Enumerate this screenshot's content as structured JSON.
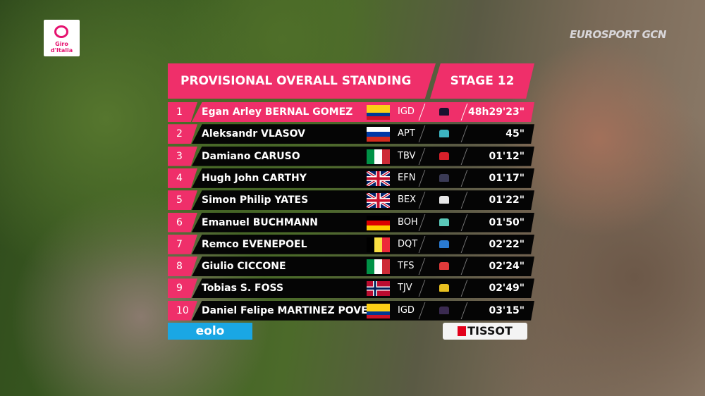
{
  "broadcast": {
    "giro_logo": "Giro d'Italia",
    "network_logo": "EUROSPORT GCN"
  },
  "header": {
    "title": "PROVISIONAL OVERALL STANDING",
    "stage": "STAGE 12"
  },
  "colors": {
    "accent": "#ef2f6a",
    "row": "#050505"
  },
  "standings": [
    {
      "rank": "1",
      "name": "Egan Arley BERNAL GOMEZ",
      "flag": "colombia",
      "team": "IGD",
      "jersey": "#1a1230",
      "time": "48h29'23\""
    },
    {
      "rank": "2",
      "name": "Aleksandr VLASOV",
      "flag": "russia",
      "team": "APT",
      "jersey": "#3cb4c0",
      "time": "45\""
    },
    {
      "rank": "3",
      "name": "Damiano CARUSO",
      "flag": "italy",
      "team": "TBV",
      "jersey": "#d8202a",
      "time": "01'12\""
    },
    {
      "rank": "4",
      "name": "Hugh John CARTHY",
      "flag": "uk",
      "team": "EFN",
      "jersey": "#3a3a55",
      "time": "01'17\""
    },
    {
      "rank": "5",
      "name": "Simon Philip YATES",
      "flag": "uk",
      "team": "BEX",
      "jersey": "#e8e8e8",
      "time": "01'22\""
    },
    {
      "rank": "6",
      "name": "Emanuel BUCHMANN",
      "flag": "germany",
      "team": "BOH",
      "jersey": "#5ac8b8",
      "time": "01'50\""
    },
    {
      "rank": "7",
      "name": "Remco EVENEPOEL",
      "flag": "belgium",
      "team": "DQT",
      "jersey": "#2a7ad0",
      "time": "02'22\""
    },
    {
      "rank": "8",
      "name": "Giulio CICCONE",
      "flag": "italy",
      "team": "TFS",
      "jersey": "#e03a3a",
      "time": "02'24\""
    },
    {
      "rank": "9",
      "name": "Tobias S. FOSS",
      "flag": "norway",
      "team": "TJV",
      "jersey": "#e8c020",
      "time": "02'49\""
    },
    {
      "rank": "10",
      "name": "Daniel Felipe MARTINEZ POVEDA",
      "flag": "colombia",
      "team": "IGD",
      "jersey": "#3a2a50",
      "time": "03'15\""
    }
  ],
  "sponsors": {
    "left": "eolo",
    "right": "TISSOT"
  }
}
